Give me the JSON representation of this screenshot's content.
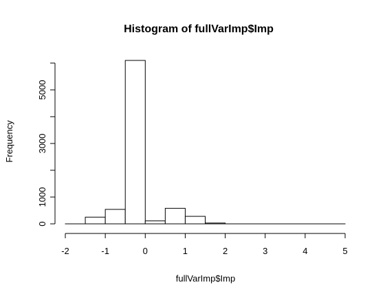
{
  "chart_data": {
    "type": "bar",
    "title": "Histogram of fullVarImp$Imp",
    "xlabel": "fullVarImp$Imp",
    "ylabel": "Frequency",
    "xlim": [
      -2,
      5
    ],
    "ylim": [
      0,
      6100
    ],
    "x_ticks": [
      -2,
      -1,
      0,
      1,
      2,
      3,
      4,
      5
    ],
    "y_ticks": [
      0,
      1000,
      3000,
      5000
    ],
    "bins": [
      {
        "x0": -2.0,
        "x1": -1.5,
        "count": 0
      },
      {
        "x0": -1.5,
        "x1": -1.0,
        "count": 250
      },
      {
        "x0": -1.0,
        "x1": -0.5,
        "count": 540
      },
      {
        "x0": -0.5,
        "x1": 0.0,
        "count": 6100
      },
      {
        "x0": 0.0,
        "x1": 0.5,
        "count": 110
      },
      {
        "x0": 0.5,
        "x1": 1.0,
        "count": 580
      },
      {
        "x0": 1.0,
        "x1": 1.5,
        "count": 280
      },
      {
        "x0": 1.5,
        "x1": 2.0,
        "count": 30
      },
      {
        "x0": 2.0,
        "x1": 2.5,
        "count": 0
      },
      {
        "x0": 2.5,
        "x1": 3.0,
        "count": 0
      },
      {
        "x0": 3.0,
        "x1": 3.5,
        "count": 0
      },
      {
        "x0": 3.5,
        "x1": 4.0,
        "count": 0
      },
      {
        "x0": 4.0,
        "x1": 4.5,
        "count": 0
      },
      {
        "x0": 4.5,
        "x1": 5.0,
        "count": 0
      }
    ]
  }
}
